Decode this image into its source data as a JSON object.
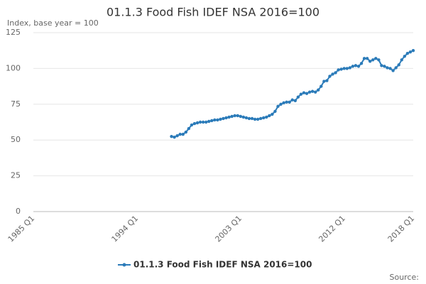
{
  "chart_data": {
    "type": "line",
    "title": "01.1.3 Food Fish IDEF NSA 2016=100",
    "y_label": "Index, base year = 100",
    "source": "Source:",
    "categories": [
      "1985 Q1",
      null,
      null,
      null,
      null,
      null,
      null,
      null,
      null,
      null,
      null,
      null,
      null,
      null,
      null,
      null,
      null,
      null,
      null,
      null,
      null,
      null,
      null,
      null,
      null,
      null,
      null,
      null,
      null,
      null,
      null,
      null,
      null,
      null,
      null,
      null,
      "1994 Q1",
      null,
      null,
      null,
      null,
      null,
      null,
      null,
      null,
      null,
      null,
      null,
      null,
      null,
      null,
      null,
      null,
      null,
      null,
      null,
      null,
      null,
      null,
      null,
      null,
      null,
      null,
      null,
      null,
      null,
      null,
      null,
      null,
      null,
      null,
      null,
      "2003 Q1",
      null,
      null,
      null,
      null,
      null,
      null,
      null,
      null,
      null,
      null,
      null,
      null,
      null,
      null,
      null,
      null,
      null,
      null,
      null,
      null,
      null,
      null,
      null,
      null,
      null,
      null,
      null,
      null,
      null,
      null,
      null,
      null,
      null,
      null,
      null,
      "2012 Q1",
      null,
      null,
      null,
      null,
      null,
      null,
      null,
      null,
      null,
      null,
      null,
      null,
      null,
      null,
      null,
      null,
      null,
      null,
      null,
      null,
      null,
      null,
      null,
      "2018 Q1"
    ],
    "series": [
      {
        "name": "01.1.3 Food Fish IDEF NSA 2016=100",
        "color": "#2b7bb9",
        "values": [
          null,
          null,
          null,
          null,
          null,
          null,
          null,
          null,
          null,
          null,
          null,
          null,
          null,
          null,
          null,
          null,
          null,
          null,
          null,
          null,
          null,
          null,
          null,
          null,
          null,
          null,
          null,
          null,
          null,
          null,
          null,
          null,
          null,
          null,
          null,
          null,
          null,
          null,
          null,
          null,
          null,
          null,
          null,
          null,
          null,
          null,
          null,
          null,
          52.5,
          52,
          53,
          54,
          54,
          55.5,
          58,
          60.5,
          61.5,
          62,
          62.5,
          62.5,
          62.5,
          63,
          63.5,
          64,
          64,
          64.5,
          65,
          65.5,
          66,
          66.5,
          67,
          67,
          66.5,
          66,
          65.5,
          65,
          65,
          64.5,
          64.5,
          65,
          65.5,
          66,
          67,
          68,
          70,
          73.5,
          75,
          76,
          76.5,
          76.5,
          78,
          77.5,
          80,
          82,
          83,
          82.5,
          83.5,
          84,
          83.5,
          85,
          87.5,
          91,
          91.5,
          94.5,
          96,
          97,
          99,
          99.5,
          100,
          100,
          100.5,
          101.5,
          102,
          101.5,
          103.5,
          107,
          107,
          105,
          106,
          107,
          106,
          102,
          101.5,
          100.5,
          100,
          98.5,
          100.5,
          102.5,
          106,
          108.5,
          110.5,
          111.5,
          112.5
        ]
      }
    ],
    "ylim": [
      0,
      125
    ],
    "yticks": [
      0,
      25,
      50,
      75,
      100,
      125
    ],
    "grid": true
  }
}
